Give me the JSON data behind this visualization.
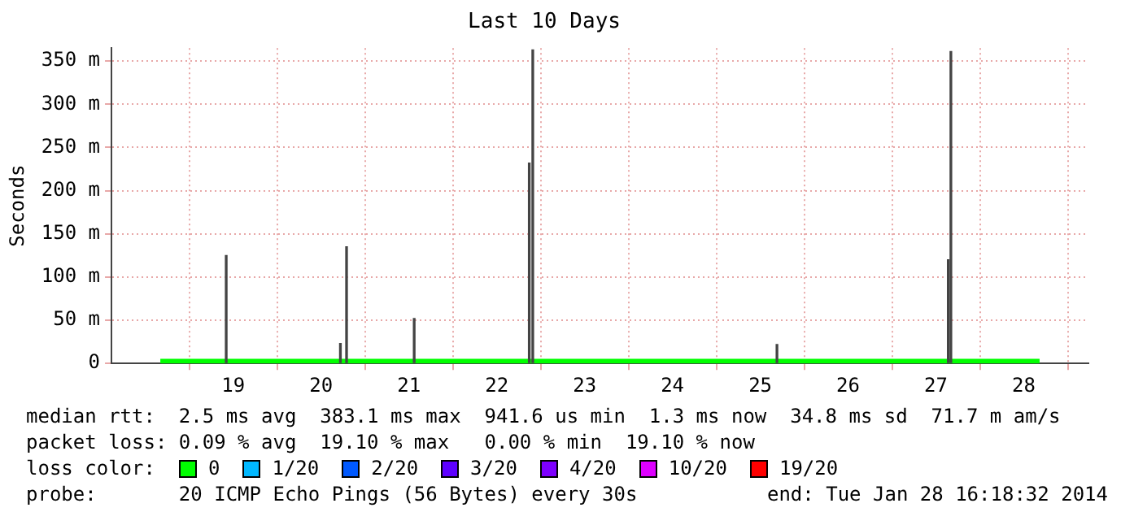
{
  "chart_data": {
    "type": "bar",
    "title": "Last 10 Days",
    "ylabel": "Seconds",
    "xlim": [
      18.17,
      28.18
    ],
    "xticks": [
      19,
      20,
      21,
      22,
      23,
      24,
      25,
      26,
      27,
      28
    ],
    "ylim": [
      0,
      365
    ],
    "yticks": [
      0,
      {
        "value": 50,
        "label": "50 m"
      },
      {
        "value": 100,
        "label": "100 m"
      },
      {
        "value": 150,
        "label": "150 m"
      },
      {
        "value": 200,
        "label": "200 m"
      },
      {
        "value": 250,
        "label": "250 m"
      },
      {
        "value": 300,
        "label": "300 m"
      },
      {
        "value": 350,
        "label": "350 m"
      }
    ],
    "grid": true,
    "series": [
      {
        "color": "#444444",
        "x": [
          18.92,
          20.22,
          20.29,
          21.06,
          22.37,
          22.41,
          25.19,
          27.14,
          27.17
        ],
        "values": [
          125,
          23,
          135,
          52,
          232,
          363,
          22,
          120,
          361
        ]
      },
      {
        "type": "line",
        "color": "#00ff00",
        "x": [
          18.17,
          28.18
        ],
        "values": [
          2.5,
          2.5
        ]
      }
    ],
    "annotations": [
      "median rtt:  2.5 ms avg  383.1 ms max  941.6 us min  1.3 ms now  34.8 ms sd  71.7 m am/s",
      "packet loss: 0.09 % avg  19.10 % max   0.00 % min  19.10 % now",
      "loss color:",
      "0",
      "1/20",
      "2/20",
      "3/20",
      "4/20",
      "10/20",
      "19/20",
      "probe:       20 ICMP Echo Pings (56 Bytes) every 30s",
      "end: Tue Jan 28 16:18:32 2014"
    ]
  }
}
